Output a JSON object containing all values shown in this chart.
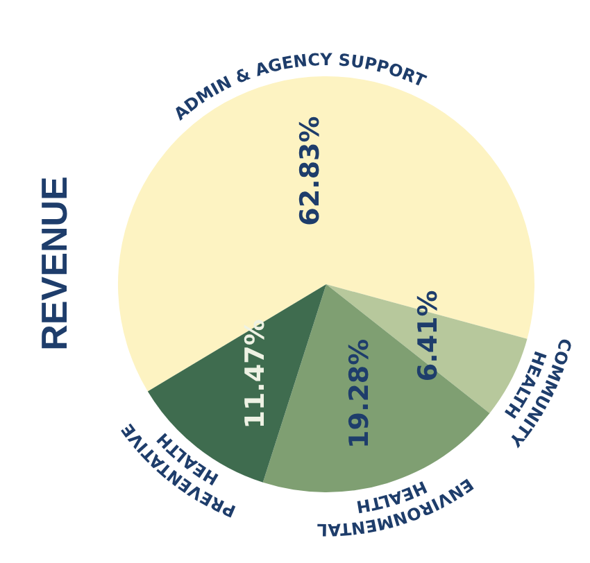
{
  "chart_data": {
    "type": "pie",
    "title": "REVENUE",
    "categories": [
      "ADMIN & AGENCY SUPPORT",
      "COMMUNITY HEALTH",
      "ENVIRONMENTAL HEALTH",
      "PREVENTATIVE HEALTH"
    ],
    "values": [
      62.83,
      6.41,
      19.28,
      11.47
    ],
    "colors": [
      "#fdf3c2",
      "#b7c89c",
      "#7f9f72",
      "#3f6c4f"
    ],
    "value_labels": [
      "62.83%",
      "6.41%",
      "19.28%",
      "11.47%"
    ]
  }
}
